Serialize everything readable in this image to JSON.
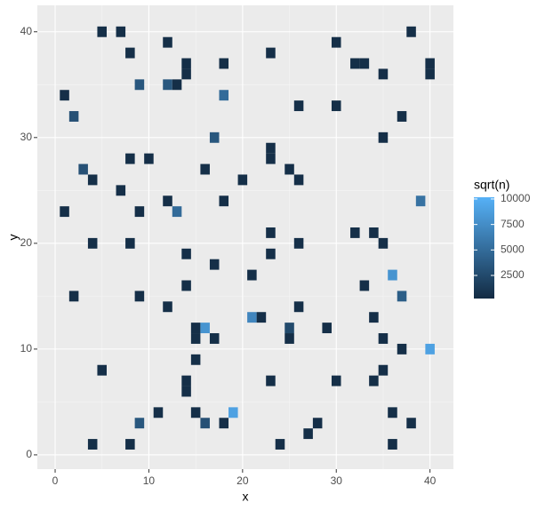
{
  "chart_data": {
    "type": "tile",
    "x_label": "x",
    "y_label": "y",
    "legend_title": "sqrt(n)",
    "x": [
      5,
      7,
      38,
      12,
      30,
      8,
      23,
      14,
      18,
      32,
      33,
      40,
      14,
      35,
      40,
      9,
      12,
      13,
      1,
      18,
      26,
      30,
      2,
      37,
      17,
      35,
      23,
      8,
      10,
      23,
      3,
      16,
      25,
      4,
      20,
      26,
      7,
      12,
      18,
      39,
      1,
      9,
      13,
      23,
      32,
      34,
      4,
      8,
      26,
      35,
      14,
      23,
      17,
      21,
      36,
      14,
      33,
      2,
      9,
      37,
      12,
      26,
      21,
      22,
      34,
      15,
      16,
      25,
      29,
      15,
      17,
      25,
      35,
      37,
      40,
      15,
      5,
      35,
      14,
      23,
      30,
      34,
      14,
      11,
      15,
      19,
      36,
      9,
      16,
      18,
      28,
      38,
      27,
      4,
      8,
      24,
      36
    ],
    "y": [
      40,
      40,
      40,
      39,
      39,
      38,
      38,
      37,
      37,
      37,
      37,
      37,
      36,
      36,
      36,
      35,
      35,
      35,
      34,
      34,
      33,
      33,
      32,
      32,
      30,
      30,
      29,
      28,
      28,
      28,
      27,
      27,
      27,
      26,
      26,
      26,
      25,
      24,
      24,
      24,
      23,
      23,
      23,
      21,
      21,
      21,
      20,
      20,
      20,
      20,
      19,
      19,
      18,
      17,
      17,
      16,
      16,
      15,
      15,
      15,
      14,
      14,
      13,
      13,
      13,
      12,
      12,
      12,
      12,
      11,
      11,
      11,
      11,
      10,
      10,
      9,
      8,
      8,
      7,
      7,
      7,
      7,
      6,
      4,
      4,
      4,
      4,
      3,
      3,
      3,
      3,
      3,
      2,
      1,
      1,
      1,
      1
    ],
    "values": [
      500,
      500,
      500,
      500,
      500,
      500,
      500,
      500,
      500,
      500,
      500,
      500,
      500,
      500,
      500,
      3500,
      3500,
      500,
      500,
      5000,
      500,
      500,
      3000,
      500,
      3500,
      500,
      500,
      500,
      500,
      500,
      3000,
      500,
      500,
      500,
      500,
      500,
      500,
      500,
      500,
      5500,
      500,
      500,
      5000,
      500,
      500,
      500,
      500,
      500,
      500,
      500,
      500,
      500,
      500,
      500,
      8000,
      500,
      500,
      500,
      500,
      4000,
      500,
      500,
      7000,
      500,
      500,
      500,
      8000,
      2500,
      500,
      500,
      500,
      500,
      500,
      500,
      9000,
      500,
      500,
      500,
      500,
      500,
      500,
      500,
      500,
      500,
      500,
      9000,
      500,
      3500,
      3000,
      500,
      500,
      500,
      500,
      500,
      500,
      500,
      500
    ],
    "xlim": [
      -1.9,
      42.5
    ],
    "ylim": [
      -1.35,
      42.5
    ],
    "xticks": [
      0,
      10,
      20,
      30,
      40
    ],
    "yticks": [
      0,
      10,
      20,
      30,
      40
    ],
    "color_low": "#132B43",
    "color_high": "#56B1F7",
    "color_limits": [
      235,
      10170
    ],
    "color_ticks": [
      2500,
      5000,
      7500,
      10000
    ],
    "grid": true
  }
}
